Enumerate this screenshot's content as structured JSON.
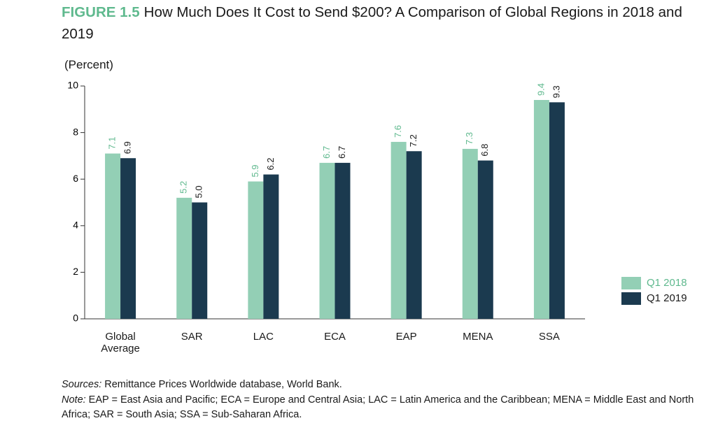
{
  "chart_data": {
    "type": "bar",
    "figure_label": "FIGURE 1.5",
    "title": "How Much Does It Cost to Send $200? A Comparison of Global Regions in 2018 and 2019",
    "y_label": "(Percent)",
    "categories": [
      "Global Average",
      "SAR",
      "LAC",
      "ECA",
      "EAP",
      "MENA",
      "SSA"
    ],
    "series": [
      {
        "name": "Q1 2018",
        "color": "#93cfb5",
        "label_color": "#5fb98e",
        "values": [
          7.1,
          5.2,
          5.9,
          6.7,
          7.6,
          7.3,
          9.4
        ]
      },
      {
        "name": "Q1 2019",
        "color": "#1b3a4f",
        "label_color": "#1a1a1a",
        "values": [
          6.9,
          5.0,
          6.2,
          6.7,
          7.2,
          6.8,
          9.3
        ],
        "value_labels": [
          "6.9",
          "5.0",
          "6.2",
          "6.7",
          "7.2",
          "6.8",
          "9.3"
        ]
      }
    ],
    "ylim": [
      0,
      10
    ],
    "yticks": [
      0,
      2,
      4,
      6,
      8,
      10
    ],
    "grid": false,
    "legend": "right",
    "sources_label": "Sources:",
    "sources": "Remittance Prices Worldwide database, World Bank.",
    "note_label": "Note:",
    "note": "EAP = East Asia and Pacific; ECA = Europe and Central Asia; LAC = Latin America and the Caribbean; MENA = Middle East and North Africa; SAR = South Asia; SSA = Sub-Saharan Africa."
  }
}
